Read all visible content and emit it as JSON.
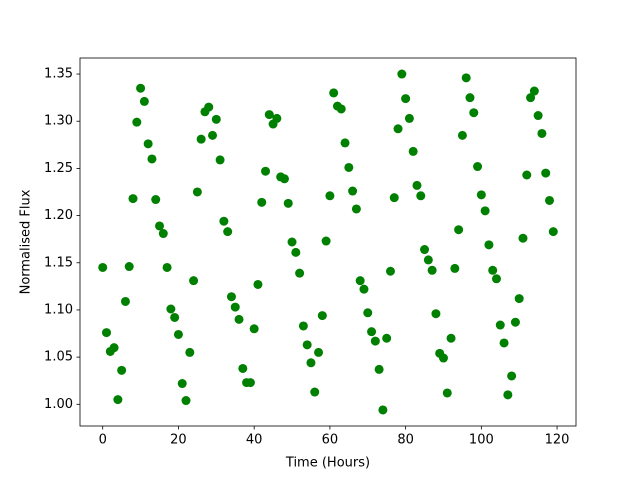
{
  "chart_data": {
    "type": "scatter",
    "xlabel": "Time (Hours)",
    "ylabel": "Normalised Flux",
    "x": [
      0,
      1,
      2,
      3,
      4,
      5,
      6,
      7,
      8,
      9,
      10,
      11,
      12,
      13,
      14,
      15,
      16,
      17,
      18,
      19,
      20,
      21,
      22,
      23,
      24,
      25,
      26,
      27,
      28,
      29,
      30,
      31,
      32,
      33,
      34,
      35,
      36,
      37,
      38,
      39,
      40,
      41,
      42,
      43,
      44,
      45,
      46,
      47,
      48,
      49,
      50,
      51,
      52,
      53,
      54,
      55,
      56,
      57,
      58,
      59,
      60,
      61,
      62,
      63,
      64,
      65,
      66,
      67,
      68,
      69,
      70,
      71,
      72,
      73,
      74,
      75,
      76,
      77,
      78,
      79,
      80,
      81,
      82,
      83,
      84,
      85,
      86,
      87,
      88,
      89,
      90,
      91,
      92,
      93,
      94,
      95,
      96,
      97,
      98,
      99,
      100,
      101,
      102,
      103,
      104,
      105,
      106,
      107,
      108,
      109,
      110,
      111,
      112,
      113,
      114,
      115,
      116,
      117,
      118,
      119
    ],
    "series": [
      {
        "color": "#008000",
        "values": [
          1.145,
          1.076,
          1.056,
          1.06,
          1.005,
          1.036,
          1.109,
          1.146,
          1.218,
          1.299,
          1.335,
          1.321,
          1.276,
          1.26,
          1.217,
          1.189,
          1.181,
          1.145,
          1.101,
          1.092,
          1.074,
          1.022,
          1.004,
          1.055,
          1.131,
          1.225,
          1.281,
          1.31,
          1.315,
          1.285,
          1.302,
          1.259,
          1.194,
          1.183,
          1.114,
          1.103,
          1.09,
          1.038,
          1.023,
          1.023,
          1.08,
          1.127,
          1.214,
          1.247,
          1.307,
          1.297,
          1.303,
          1.241,
          1.239,
          1.213,
          1.172,
          1.161,
          1.139,
          1.083,
          1.063,
          1.044,
          1.013,
          1.055,
          1.094,
          1.173,
          1.221,
          1.33,
          1.316,
          1.313,
          1.277,
          1.251,
          1.226,
          1.207,
          1.131,
          1.122,
          1.097,
          1.077,
          1.067,
          1.037,
          0.994,
          1.07,
          1.141,
          1.219,
          1.292,
          1.35,
          1.324,
          1.303,
          1.268,
          1.232,
          1.221,
          1.164,
          1.153,
          1.142,
          1.096,
          1.054,
          1.049,
          1.012,
          1.07,
          1.144,
          1.185,
          1.285,
          1.346,
          1.325,
          1.309,
          1.252,
          1.222,
          1.205,
          1.169,
          1.142,
          1.133,
          1.084,
          1.065,
          1.01,
          1.03,
          1.087,
          1.112,
          1.176,
          1.243,
          1.325,
          1.332,
          1.306,
          1.287,
          1.245,
          1.216,
          1.183
        ]
      }
    ],
    "xlim": [
      -6,
      125
    ],
    "xticks": [
      0,
      20,
      40,
      60,
      80,
      100,
      120
    ],
    "ylim": [
      0.977,
      1.367
    ],
    "yticks": [
      {
        "value": 1.0,
        "label": "1.00"
      },
      1.05,
      {
        "value": 1.1,
        "label": "1.10"
      },
      1.15,
      {
        "value": 1.2,
        "label": "1.20"
      },
      1.25,
      {
        "value": 1.3,
        "label": "1.30"
      },
      1.35
    ],
    "grid": false
  }
}
